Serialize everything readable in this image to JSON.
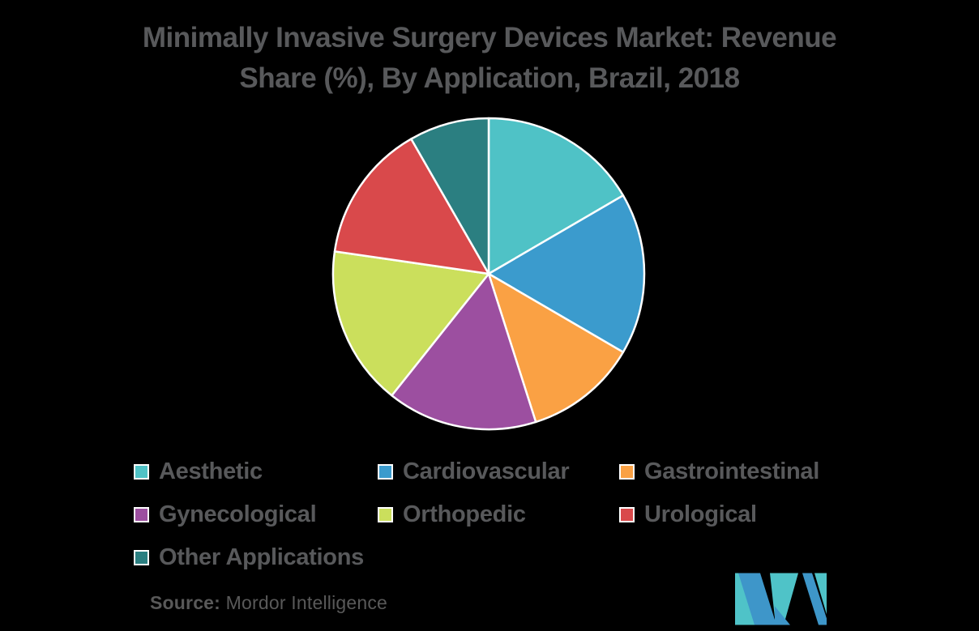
{
  "header": {
    "title_line1": "Minimally Invasive Surgery Devices Market: Revenue",
    "title_line2": "Share (%), By Application, Brazil, 2018"
  },
  "chart_data": {
    "type": "pie",
    "title": "Minimally Invasive Surgery Devices Market: Revenue Share (%), By Application, Brazil, 2018",
    "categories": [
      "Aesthetic",
      "Cardiovascular",
      "Gastrointestinal",
      "Gynecological",
      "Orthopedic",
      "Urological",
      "Other Applications"
    ],
    "values": [
      16.6,
      16.8,
      11.7,
      15.6,
      16.6,
      14.4,
      8.3
    ],
    "unit": "percent",
    "colors": [
      "#4FC2C6",
      "#3B9BCD",
      "#FAA144",
      "#9C4FA0",
      "#CBDF5C",
      "#D9494B",
      "#2B7F81"
    ],
    "start_angle_deg": 0,
    "direction": "clockwise",
    "slice_border_color": "#ffffff",
    "legend_position": "bottom"
  },
  "legend": {
    "items": [
      {
        "label": "Aesthetic",
        "color": "#4FC2C6"
      },
      {
        "label": "Cardiovascular",
        "color": "#3B9BCD"
      },
      {
        "label": "Gastrointestinal",
        "color": "#FAA144"
      },
      {
        "label": "Gynecological",
        "color": "#9C4FA0"
      },
      {
        "label": "Orthopedic",
        "color": "#CBDF5C"
      },
      {
        "label": "Urological",
        "color": "#D9494B"
      },
      {
        "label": "Other Applications",
        "color": "#2B7F81"
      }
    ]
  },
  "source": {
    "label": "Source:",
    "text": "Mordor Intelligence"
  },
  "logo": {
    "name": "mordor-intelligence-logo",
    "teal": "#4FC3C8",
    "blue": "#3E96C9"
  },
  "style": {
    "text_color": "#58595B",
    "background": "#000000"
  }
}
